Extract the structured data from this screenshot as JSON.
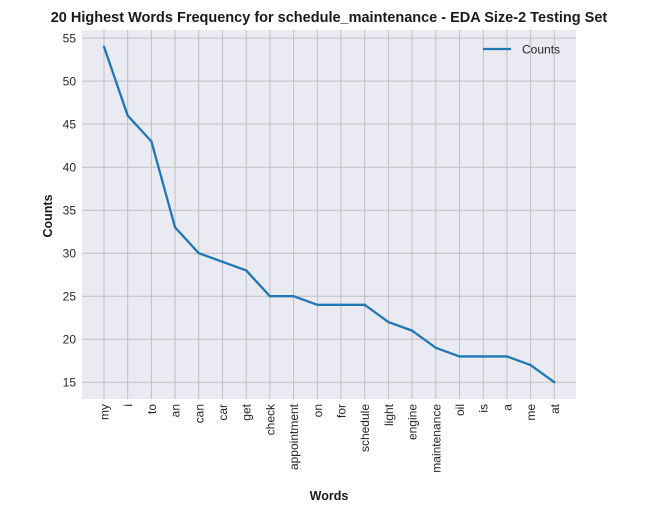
{
  "chart_data": {
    "type": "line",
    "title": "20 Highest Words Frequency for schedule_maintenance - EDA Size-2 Testing Set",
    "xlabel": "Words",
    "ylabel": "Counts",
    "categories": [
      "my",
      "i",
      "to",
      "an",
      "can",
      "car",
      "get",
      "check",
      "appointment",
      "on",
      "for",
      "schedule",
      "light",
      "engine",
      "maintenance",
      "oil",
      "is",
      "a",
      "me",
      "at"
    ],
    "series": [
      {
        "name": "Counts",
        "values": [
          54,
          46,
          43,
          33,
          30,
          29,
          28,
          25,
          25,
          24,
          24,
          24,
          22,
          21,
          19,
          18,
          18,
          18,
          17,
          15
        ]
      }
    ],
    "ylim": [
      13.05,
      55.95
    ],
    "yticks": [
      15,
      20,
      25,
      30,
      35,
      40,
      45,
      50,
      55
    ],
    "grid": true,
    "legend": "top-right",
    "colors": {
      "line": "#1f77b4",
      "plot_bg": "#eaeaf2",
      "grid": "#c0c0c0"
    }
  }
}
